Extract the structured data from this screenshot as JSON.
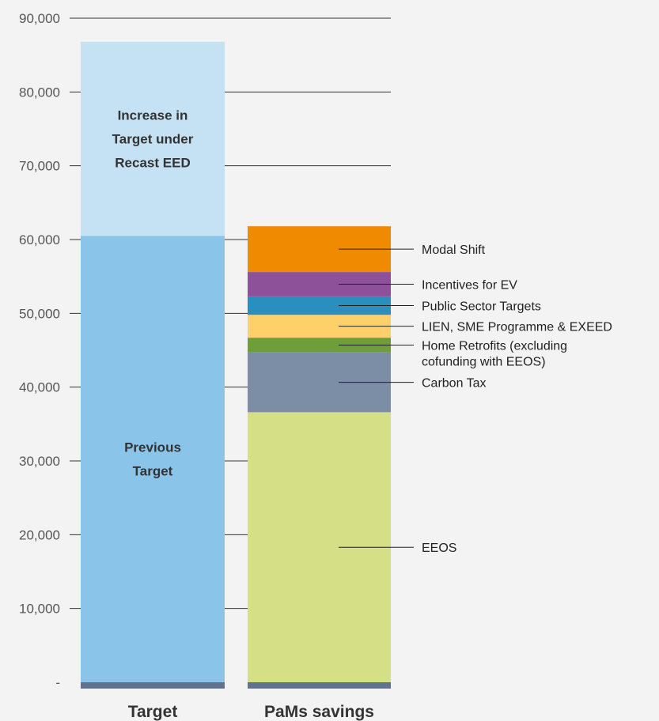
{
  "chart_data": {
    "type": "bar",
    "stacked": true,
    "categories": [
      "Target",
      "PaMs savings"
    ],
    "ylim": [
      0,
      90000
    ],
    "y_ticks": [
      "-",
      "10,000",
      "20,000",
      "30,000",
      "40,000",
      "50,000",
      "60,000",
      "70,000",
      "80,000",
      "90,000"
    ],
    "y_tick_values": [
      0,
      10000,
      20000,
      30000,
      40000,
      50000,
      60000,
      70000,
      80000,
      90000
    ],
    "grid": true,
    "base_band_color": "#5f7391",
    "bars": [
      {
        "category": "Target",
        "segments": [
          {
            "label_lines": [
              "Previous",
              "Target"
            ],
            "value": 60500,
            "color": "#8ac4e8"
          },
          {
            "label_lines": [
              "Increase in",
              "Target under",
              "Recast EED"
            ],
            "value": 26300,
            "color": "#c5e1f4"
          }
        ]
      },
      {
        "category": "PaMs savings",
        "segments": [
          {
            "label_lines": [
              "EEOS"
            ],
            "value": 36600,
            "color": "#d5df85"
          },
          {
            "label_lines": [
              "Carbon Tax"
            ],
            "value": 8100,
            "color": "#7c8da6"
          },
          {
            "label_lines": [
              "Home Retrofits (excluding",
              "cofunding with EEOS)"
            ],
            "value": 2000,
            "color": "#6e9e3a"
          },
          {
            "label_lines": [
              "LIEN, SME Programme & EXEED"
            ],
            "value": 3100,
            "color": "#fdd06a"
          },
          {
            "label_lines": [
              "Public Sector Targets"
            ],
            "value": 2500,
            "color": "#2a8fbf"
          },
          {
            "label_lines": [
              "Incentives for EV"
            ],
            "value": 3300,
            "color": "#8d519a"
          },
          {
            "label_lines": [
              "Modal Shift"
            ],
            "value": 6200,
            "color": "#f08a00"
          }
        ]
      }
    ]
  }
}
